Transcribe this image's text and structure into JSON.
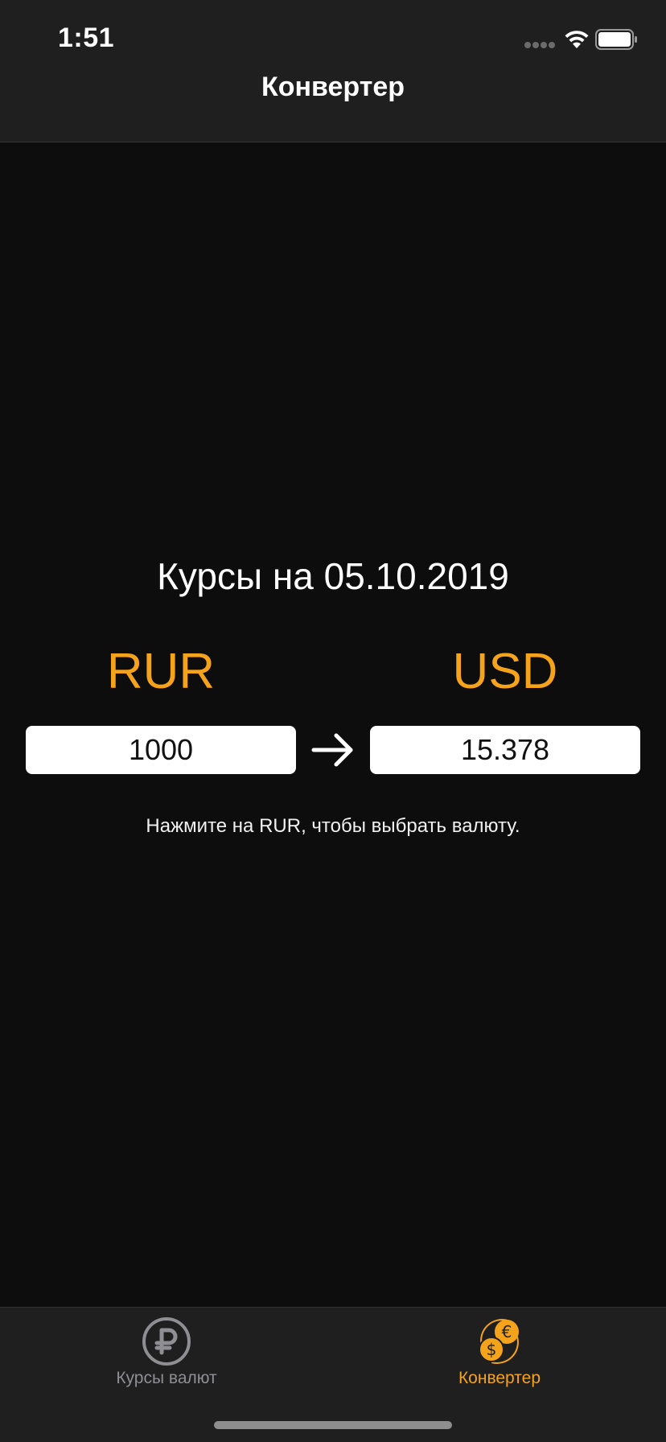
{
  "status_bar": {
    "time": "1:51"
  },
  "nav": {
    "title": "Конвертер"
  },
  "converter": {
    "rates_date_label": "Курсы на 05.10.2019",
    "from_currency": "RUR",
    "to_currency": "USD",
    "from_amount": "1000",
    "to_amount": "15.378",
    "hint": "Нажмите на RUR, чтобы выбрать валюту."
  },
  "tab_bar": {
    "items": [
      {
        "label": "Курсы валют",
        "icon": "ruble-icon",
        "selected": false
      },
      {
        "label": "Конвертер",
        "icon": "currency-exchange-icon",
        "selected": true
      }
    ]
  },
  "colors": {
    "accent": "#f5a31a",
    "background": "#0d0d0d",
    "bar_background": "#1f1f1f",
    "inactive": "#8e8e93"
  }
}
